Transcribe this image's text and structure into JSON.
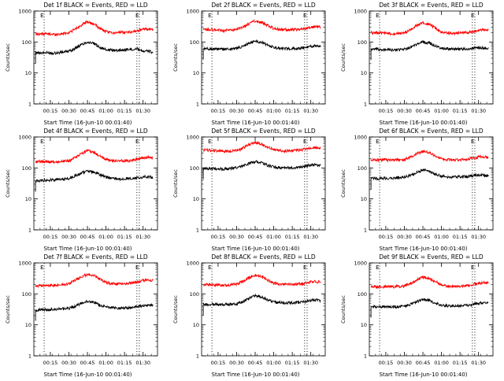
{
  "figure": {
    "background": "#ffffff",
    "axis_color": "#000000",
    "events_color": "#000000",
    "lld_color": "#ff0000",
    "marker_line_style": "dotted"
  },
  "chart_data": [
    {
      "type": "line",
      "title": "Det 1f BLACK = Events, RED = LLD",
      "xlabel": "Start Time (16-Jun-10 00:01:40)",
      "ylabel": "Counts/sec",
      "yscale": "log",
      "ylim": [
        1,
        1000
      ],
      "xlim_minutes_from_start": [
        0,
        100
      ],
      "xticks": [
        "00:15",
        "00:30",
        "00:45",
        "01:00",
        "01:15",
        "01:30"
      ],
      "yticks": [
        "1",
        "10",
        "100",
        "1000"
      ],
      "marker_label": "E",
      "marker_times": [
        "00:10",
        "01:25",
        "01:27"
      ],
      "grid": false,
      "series": [
        {
          "color": "#000000",
          "x": [
            "00:03",
            "00:10",
            "00:20",
            "00:30",
            "00:35",
            "00:40",
            "00:45",
            "00:50",
            "00:55",
            "01:00",
            "01:05",
            "01:10",
            "01:20",
            "01:25",
            "01:30",
            "01:35",
            "01:38"
          ],
          "values": [
            45,
            45,
            44,
            50,
            62,
            82,
            100,
            90,
            68,
            56,
            54,
            54,
            58,
            60,
            52,
            50,
            45
          ]
        },
        {
          "color": "#ff0000",
          "x": [
            "00:03",
            "00:10",
            "00:20",
            "00:30",
            "00:35",
            "00:40",
            "00:45",
            "00:50",
            "00:55",
            "01:00",
            "01:05",
            "01:10",
            "01:20",
            "01:25",
            "01:30",
            "01:35",
            "01:38"
          ],
          "values": [
            180,
            185,
            175,
            200,
            260,
            350,
            450,
            380,
            280,
            210,
            200,
            205,
            210,
            230,
            260,
            255,
            250
          ]
        }
      ]
    },
    {
      "type": "line",
      "title": "Det 2f BLACK = Events, RED = LLD",
      "xlabel": "Start Time (16-Jun-10 00:01:40)",
      "ylabel": "Counts/sec",
      "yscale": "log",
      "ylim": [
        1,
        1000
      ],
      "xlim_minutes_from_start": [
        0,
        100
      ],
      "xticks": [
        "00:15",
        "00:30",
        "00:45",
        "01:00",
        "01:15",
        "01:30"
      ],
      "yticks": [
        "1",
        "10",
        "100",
        "1000"
      ],
      "marker_label": "E",
      "marker_times": [
        "00:10",
        "01:25",
        "01:27"
      ],
      "grid": false,
      "series": [
        {
          "color": "#000000",
          "x": [
            "00:03",
            "00:10",
            "00:20",
            "00:30",
            "00:35",
            "00:40",
            "00:45",
            "00:50",
            "00:55",
            "01:00",
            "01:05",
            "01:10",
            "01:20",
            "01:25",
            "01:30",
            "01:35",
            "01:38"
          ],
          "values": [
            60,
            60,
            58,
            62,
            72,
            90,
            108,
            98,
            80,
            66,
            62,
            60,
            62,
            66,
            72,
            75,
            72
          ]
        },
        {
          "color": "#ff0000",
          "x": [
            "00:03",
            "00:10",
            "00:20",
            "00:30",
            "00:35",
            "00:40",
            "00:45",
            "00:50",
            "00:55",
            "01:00",
            "01:05",
            "01:10",
            "01:20",
            "01:25",
            "01:30",
            "01:35",
            "01:38"
          ],
          "values": [
            250,
            248,
            235,
            250,
            300,
            390,
            480,
            430,
            340,
            275,
            255,
            248,
            255,
            270,
            300,
            310,
            300
          ]
        }
      ]
    },
    {
      "type": "line",
      "title": "Det 3f BLACK = Events, RED = LLD",
      "xlabel": "Start Time (16-Jun-10 00:01:40)",
      "ylabel": "Counts/sec",
      "yscale": "log",
      "ylim": [
        1,
        1000
      ],
      "xlim_minutes_from_start": [
        0,
        100
      ],
      "xticks": [
        "00:15",
        "00:30",
        "00:45",
        "01:00",
        "01:15",
        "01:30"
      ],
      "yticks": [
        "1",
        "10",
        "100",
        "1000"
      ],
      "marker_label": "E",
      "marker_times": [
        "00:10",
        "01:25",
        "01:27"
      ],
      "grid": false,
      "series": [
        {
          "color": "#000000",
          "x": [
            "00:03",
            "00:10",
            "00:20",
            "00:30",
            "00:35",
            "00:40",
            "00:45",
            "00:50",
            "00:55",
            "01:00",
            "01:05",
            "01:10",
            "01:20",
            "01:25",
            "01:30",
            "01:35",
            "01:38"
          ],
          "values": [
            58,
            57,
            55,
            58,
            68,
            85,
            100,
            92,
            75,
            63,
            60,
            58,
            60,
            62,
            65,
            64,
            60
          ]
        },
        {
          "color": "#ff0000",
          "x": [
            "00:03",
            "00:10",
            "00:20",
            "00:30",
            "00:35",
            "00:40",
            "00:45",
            "00:50",
            "00:55",
            "01:00",
            "01:05",
            "01:10",
            "01:20",
            "01:25",
            "01:30",
            "01:35",
            "01:38"
          ],
          "values": [
            200,
            198,
            180,
            195,
            250,
            340,
            420,
            370,
            280,
            215,
            195,
            190,
            200,
            215,
            240,
            245,
            235
          ]
        }
      ]
    },
    {
      "type": "line",
      "title": "Det 4f BLACK = Events, RED = LLD",
      "xlabel": "Start Time (16-Jun-10 00:01:40)",
      "ylabel": "Counts/sec",
      "yscale": "log",
      "ylim": [
        1,
        1000
      ],
      "xlim_minutes_from_start": [
        0,
        100
      ],
      "xticks": [
        "00:15",
        "00:30",
        "00:45",
        "01:00",
        "01:15",
        "01:30"
      ],
      "yticks": [
        "1",
        "10",
        "100",
        "1000"
      ],
      "marker_label": "E",
      "marker_times": [
        "00:10",
        "01:25",
        "01:27"
      ],
      "grid": false,
      "series": [
        {
          "color": "#000000",
          "x": [
            "00:03",
            "00:10",
            "00:20",
            "00:30",
            "00:35",
            "00:40",
            "00:45",
            "00:50",
            "00:55",
            "01:00",
            "01:05",
            "01:10",
            "01:20",
            "01:25",
            "01:30",
            "01:35",
            "01:38"
          ],
          "values": [
            38,
            40,
            42,
            45,
            55,
            68,
            80,
            74,
            60,
            50,
            46,
            44,
            46,
            48,
            52,
            52,
            48
          ]
        },
        {
          "color": "#ff0000",
          "x": [
            "00:03",
            "00:10",
            "00:20",
            "00:30",
            "00:35",
            "00:40",
            "00:45",
            "00:50",
            "00:55",
            "01:00",
            "01:05",
            "01:10",
            "01:20",
            "01:25",
            "01:30",
            "01:35",
            "01:38"
          ],
          "values": [
            160,
            160,
            155,
            170,
            220,
            290,
            360,
            320,
            240,
            185,
            170,
            165,
            175,
            190,
            215,
            220,
            210
          ]
        }
      ]
    },
    {
      "type": "line",
      "title": "Det 5f BLACK = Events, RED = LLD",
      "xlabel": "Start Time (16-Jun-10 00:01:40)",
      "ylabel": "Counts/sec",
      "yscale": "log",
      "ylim": [
        1,
        1000
      ],
      "xlim_minutes_from_start": [
        0,
        100
      ],
      "xticks": [
        "00:15",
        "00:30",
        "00:45",
        "01:00",
        "01:15",
        "01:30"
      ],
      "yticks": [
        "1",
        "10",
        "100",
        "1000"
      ],
      "marker_label": "E",
      "marker_times": [
        "00:10",
        "01:25",
        "01:27"
      ],
      "grid": false,
      "series": [
        {
          "color": "#000000",
          "x": [
            "00:03",
            "00:10",
            "00:20",
            "00:30",
            "00:35",
            "00:40",
            "00:45",
            "00:50",
            "00:55",
            "01:00",
            "01:05",
            "01:10",
            "01:20",
            "01:25",
            "01:30",
            "01:35",
            "01:38"
          ],
          "values": [
            95,
            95,
            92,
            100,
            115,
            140,
            160,
            145,
            122,
            108,
            102,
            100,
            105,
            112,
            125,
            125,
            118
          ]
        },
        {
          "color": "#ff0000",
          "x": [
            "00:03",
            "00:10",
            "00:20",
            "00:30",
            "00:35",
            "00:40",
            "00:45",
            "00:50",
            "00:55",
            "01:00",
            "01:05",
            "01:10",
            "01:20",
            "01:25",
            "01:30",
            "01:35",
            "01:38"
          ],
          "values": [
            380,
            370,
            345,
            365,
            440,
            560,
            650,
            590,
            470,
            390,
            365,
            355,
            370,
            400,
            450,
            460,
            440
          ]
        }
      ]
    },
    {
      "type": "line",
      "title": "Det 6f BLACK = Events, RED = LLD",
      "xlabel": "Start Time (16-Jun-10 00:01:40)",
      "ylabel": "Counts/sec",
      "yscale": "log",
      "ylim": [
        1,
        1000
      ],
      "xlim_minutes_from_start": [
        0,
        100
      ],
      "xticks": [
        "00:15",
        "00:30",
        "00:45",
        "01:00",
        "01:15",
        "01:30"
      ],
      "yticks": [
        "1",
        "10",
        "100",
        "1000"
      ],
      "marker_label": "E",
      "marker_times": [
        "00:10",
        "01:25",
        "01:27"
      ],
      "grid": false,
      "series": [
        {
          "color": "#000000",
          "x": [
            "00:03",
            "00:10",
            "00:20",
            "00:30",
            "00:35",
            "00:40",
            "00:45",
            "00:50",
            "00:55",
            "01:00",
            "01:05",
            "01:10",
            "01:20",
            "01:25",
            "01:30",
            "01:35",
            "01:38"
          ],
          "values": [
            45,
            46,
            47,
            50,
            58,
            72,
            85,
            78,
            64,
            55,
            52,
            51,
            53,
            56,
            60,
            58,
            55
          ]
        },
        {
          "color": "#ff0000",
          "x": [
            "00:03",
            "00:10",
            "00:20",
            "00:30",
            "00:35",
            "00:40",
            "00:45",
            "00:50",
            "00:55",
            "01:00",
            "01:05",
            "01:10",
            "01:20",
            "01:25",
            "01:30",
            "01:35",
            "01:38"
          ],
          "values": [
            180,
            182,
            180,
            188,
            225,
            290,
            340,
            310,
            250,
            200,
            185,
            180,
            190,
            205,
            225,
            230,
            222
          ]
        }
      ]
    },
    {
      "type": "line",
      "title": "Det 7f BLACK = Events, RED = LLD",
      "xlabel": "Start Time (16-Jun-10 00:01:40)",
      "ylabel": "Counts/sec",
      "yscale": "log",
      "ylim": [
        1,
        1000
      ],
      "xlim_minutes_from_start": [
        0,
        100
      ],
      "xticks": [
        "00:15",
        "00:30",
        "00:45",
        "01:00",
        "01:15",
        "01:30"
      ],
      "yticks": [
        "1",
        "10",
        "100",
        "1000"
      ],
      "marker_label": "E",
      "marker_times": [
        "00:10",
        "01:25",
        "01:27"
      ],
      "grid": false,
      "series": [
        {
          "color": "#000000",
          "x": [
            "00:03",
            "00:10",
            "00:20",
            "00:30",
            "00:35",
            "00:40",
            "00:45",
            "00:50",
            "00:55",
            "01:00",
            "01:05",
            "01:10",
            "01:20",
            "01:25",
            "01:30",
            "01:35",
            "01:38"
          ],
          "values": [
            30,
            31,
            32,
            34,
            40,
            50,
            58,
            54,
            44,
            38,
            36,
            35,
            36,
            38,
            42,
            43,
            42
          ]
        },
        {
          "color": "#ff0000",
          "x": [
            "00:03",
            "00:10",
            "00:20",
            "00:30",
            "00:35",
            "00:40",
            "00:45",
            "00:50",
            "00:55",
            "01:00",
            "01:05",
            "01:10",
            "01:20",
            "01:25",
            "01:30",
            "01:35",
            "01:38"
          ],
          "values": [
            180,
            185,
            190,
            210,
            270,
            360,
            430,
            390,
            300,
            235,
            215,
            210,
            220,
            240,
            270,
            280,
            270
          ]
        }
      ]
    },
    {
      "type": "line",
      "title": "Det 8f BLACK = Events, RED = LLD",
      "xlabel": "Start Time (16-Jun-10 00:01:40)",
      "ylabel": "Counts/sec",
      "yscale": "log",
      "ylim": [
        1,
        1000
      ],
      "xlim_minutes_from_start": [
        0,
        100
      ],
      "xticks": [
        "00:15",
        "00:30",
        "00:45",
        "01:00",
        "01:15",
        "01:30"
      ],
      "yticks": [
        "1",
        "10",
        "100",
        "1000"
      ],
      "marker_label": "E",
      "marker_times": [
        "00:10",
        "01:25",
        "01:27"
      ],
      "grid": false,
      "series": [
        {
          "color": "#000000",
          "x": [
            "00:03",
            "00:10",
            "00:20",
            "00:30",
            "00:35",
            "00:40",
            "00:45",
            "00:50",
            "00:55",
            "01:00",
            "01:05",
            "01:10",
            "01:20",
            "01:25",
            "01:30",
            "01:35",
            "01:38"
          ],
          "values": [
            45,
            46,
            45,
            48,
            56,
            72,
            88,
            80,
            64,
            54,
            52,
            51,
            53,
            56,
            62,
            63,
            60
          ]
        },
        {
          "color": "#ff0000",
          "x": [
            "00:03",
            "00:10",
            "00:20",
            "00:30",
            "00:35",
            "00:40",
            "00:45",
            "00:50",
            "00:55",
            "01:00",
            "01:05",
            "01:10",
            "01:20",
            "01:25",
            "01:30",
            "01:35",
            "01:38"
          ],
          "values": [
            200,
            198,
            190,
            205,
            255,
            330,
            400,
            360,
            280,
            222,
            205,
            200,
            205,
            220,
            245,
            250,
            240
          ]
        }
      ]
    },
    {
      "type": "line",
      "title": "Det 9f BLACK = Events, RED = LLD",
      "xlabel": "Start Time (16-Jun-10 00:01:40)",
      "ylabel": "Counts/sec",
      "yscale": "log",
      "ylim": [
        1,
        1000
      ],
      "xlim_minutes_from_start": [
        0,
        100
      ],
      "xticks": [
        "00:15",
        "00:30",
        "00:45",
        "01:00",
        "01:15",
        "01:30"
      ],
      "yticks": [
        "1",
        "10",
        "100",
        "1000"
      ],
      "marker_label": "E",
      "marker_times": [
        "00:10",
        "01:25",
        "01:27"
      ],
      "grid": false,
      "series": [
        {
          "color": "#000000",
          "x": [
            "00:03",
            "00:10",
            "00:20",
            "00:30",
            "00:35",
            "00:40",
            "00:45",
            "00:50",
            "00:55",
            "01:00",
            "01:05",
            "01:10",
            "01:20",
            "01:25",
            "01:30",
            "01:35",
            "01:38"
          ],
          "values": [
            38,
            39,
            38,
            40,
            46,
            56,
            66,
            62,
            50,
            43,
            41,
            40,
            42,
            45,
            50,
            52,
            50
          ]
        },
        {
          "color": "#ff0000",
          "x": [
            "00:03",
            "00:10",
            "00:20",
            "00:30",
            "00:35",
            "00:40",
            "00:45",
            "00:50",
            "00:55",
            "01:00",
            "01:05",
            "01:10",
            "01:20",
            "01:25",
            "01:30",
            "01:35",
            "01:38"
          ],
          "values": [
            170,
            172,
            168,
            178,
            215,
            285,
            345,
            315,
            250,
            195,
            180,
            176,
            185,
            200,
            222,
            228,
            220
          ]
        }
      ]
    }
  ]
}
